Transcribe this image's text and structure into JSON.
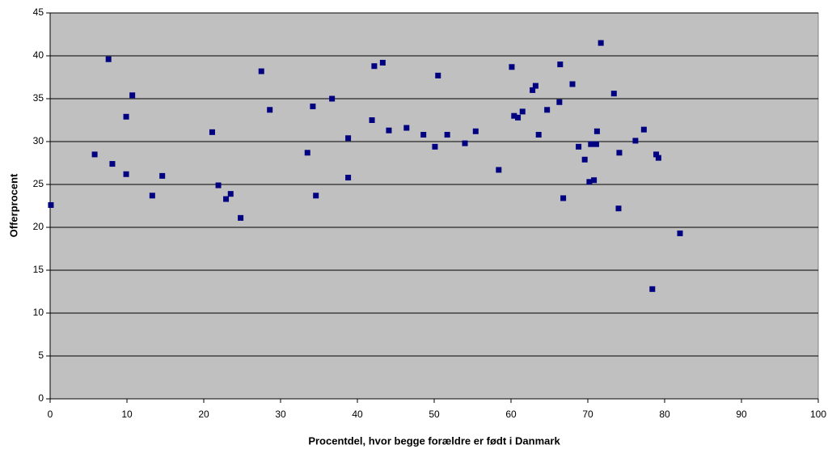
{
  "chart_data": {
    "type": "scatter",
    "x_label": "Procentdel, hvor begge forældre er født i Danmark",
    "y_label": "Offerprocent",
    "x": [
      0.1,
      5.8,
      7.6,
      8.1,
      9.9,
      9.9,
      10.7,
      13.3,
      14.6,
      21.1,
      21.9,
      22.9,
      23.5,
      24.8,
      27.5,
      28.6,
      33.5,
      34.2,
      34.6,
      36.7,
      38.8,
      38.8,
      41.9,
      42.2,
      43.3,
      44.1,
      46.4,
      48.6,
      50.1,
      50.5,
      51.7,
      54.0,
      55.4,
      58.4,
      60.1,
      60.4,
      60.9,
      61.5,
      62.8,
      63.2,
      63.6,
      64.7,
      66.3,
      66.4,
      66.8,
      68.0,
      68.8,
      69.6,
      70.2,
      70.4,
      70.8,
      71.1,
      71.2,
      71.7,
      73.4,
      74.0,
      74.1,
      76.2,
      77.3,
      78.4,
      78.9,
      79.2,
      82.0
    ],
    "values": [
      22.6,
      28.5,
      39.6,
      27.4,
      32.9,
      26.2,
      35.4,
      23.7,
      26.0,
      31.1,
      24.9,
      23.3,
      23.9,
      21.1,
      38.2,
      33.7,
      28.7,
      34.1,
      23.7,
      35.0,
      30.4,
      25.8,
      32.5,
      38.8,
      39.2,
      31.3,
      31.6,
      30.8,
      29.4,
      37.7,
      30.8,
      29.8,
      31.2,
      26.7,
      38.7,
      33.0,
      32.8,
      33.5,
      36.0,
      36.5,
      30.8,
      33.7,
      34.6,
      39.0,
      23.4,
      36.7,
      29.4,
      27.9,
      25.3,
      29.7,
      25.5,
      29.7,
      31.2,
      41.5,
      35.6,
      22.2,
      28.7,
      30.1,
      31.4,
      12.8,
      28.5,
      28.1,
      19.3
    ],
    "color": "#000080",
    "xlim": [
      0,
      100
    ],
    "xticks": [
      0,
      10,
      20,
      30,
      40,
      50,
      60,
      70,
      80,
      90,
      100
    ],
    "ylim": [
      0,
      45
    ],
    "yticks": [
      0,
      5,
      10,
      15,
      20,
      25,
      30,
      35,
      40,
      45
    ],
    "grid": true
  }
}
